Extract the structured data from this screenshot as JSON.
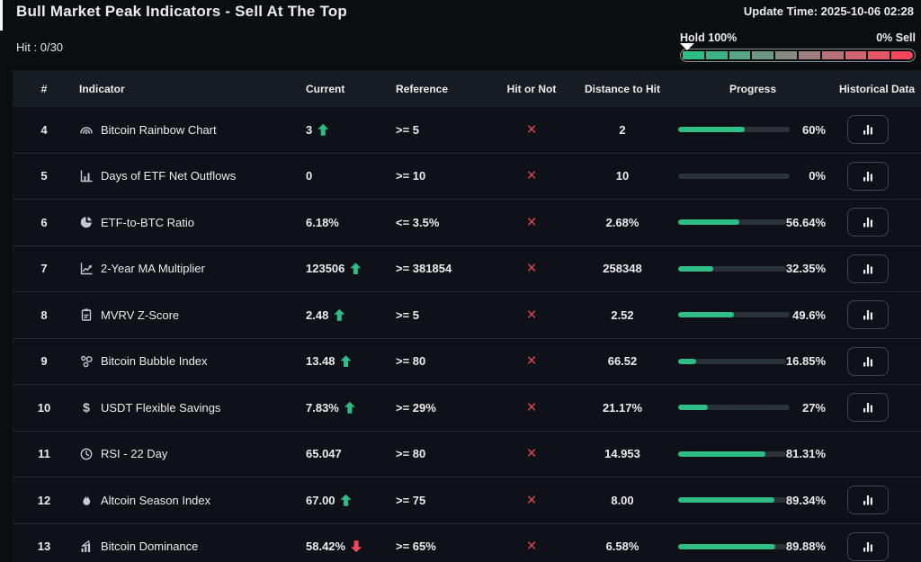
{
  "page": {
    "title": "Bull Market Peak Indicators - Sell At The Top",
    "update_time": "Update Time: 2025-10-06 02:28",
    "hit_counter": "Hit : 0/30"
  },
  "gauge": {
    "left_label": "Hold 100%",
    "right_label": "0% Sell",
    "marker_position_pct": 0,
    "segment_colors": [
      "#2ebd85",
      "#3fb186",
      "#57a486",
      "#6f9884",
      "#878b81",
      "#9f7e7d",
      "#b77178",
      "#cf6571",
      "#e25866",
      "#f6465d"
    ]
  },
  "table": {
    "headers": [
      "#",
      "Indicator",
      "Current",
      "Reference",
      "Hit or Not",
      "Distance to Hit",
      "Progress",
      "Historical Data"
    ],
    "hit_symbol": "×",
    "rows": [
      {
        "num": "4",
        "icon": "rainbow-icon",
        "indicator": "Bitcoin Rainbow Chart",
        "current": "3",
        "trend": "up",
        "reference": ">= 5",
        "hit": false,
        "distance": "2",
        "progress_pct": 60,
        "progress_label": "60%",
        "has_history_button": true
      },
      {
        "num": "5",
        "icon": "bar-chart-axis-icon",
        "indicator": "Days of ETF Net Outflows",
        "current": "0",
        "trend": "none",
        "reference": ">= 10",
        "hit": false,
        "distance": "10",
        "progress_pct": 0,
        "progress_label": "0%",
        "has_history_button": true
      },
      {
        "num": "6",
        "icon": "pie-chart-icon",
        "indicator": "ETF-to-BTC Ratio",
        "current": "6.18%",
        "trend": "none",
        "reference": "<= 3.5%",
        "hit": false,
        "distance": "2.68%",
        "progress_pct": 56.64,
        "progress_label": "56.64%",
        "has_history_button": true
      },
      {
        "num": "7",
        "icon": "line-chart-icon",
        "indicator": "2-Year MA Multiplier",
        "current": "123506",
        "trend": "up",
        "reference": ">= 381854",
        "hit": false,
        "distance": "258348",
        "progress_pct": 32.35,
        "progress_label": "32.35%",
        "has_history_button": true
      },
      {
        "num": "8",
        "icon": "clipboard-icon",
        "indicator": "MVRV Z-Score",
        "current": "2.48",
        "trend": "up",
        "reference": ">= 5",
        "hit": false,
        "distance": "2.52",
        "progress_pct": 49.6,
        "progress_label": "49.6%",
        "has_history_button": true
      },
      {
        "num": "9",
        "icon": "bubbles-icon",
        "indicator": "Bitcoin Bubble Index",
        "current": "13.48",
        "trend": "up",
        "reference": ">= 80",
        "hit": false,
        "distance": "66.52",
        "progress_pct": 16.85,
        "progress_label": "16.85%",
        "has_history_button": true
      },
      {
        "num": "10",
        "icon": "dollar-icon",
        "indicator": "USDT Flexible Savings",
        "current": "7.83%",
        "trend": "up",
        "reference": ">= 29%",
        "hit": false,
        "distance": "21.17%",
        "progress_pct": 27,
        "progress_label": "27%",
        "has_history_button": true
      },
      {
        "num": "11",
        "icon": "clock-icon",
        "indicator": "RSI - 22 Day",
        "current": "65.047",
        "trend": "none",
        "reference": ">= 80",
        "hit": false,
        "distance": "14.953",
        "progress_pct": 81.31,
        "progress_label": "81.31%",
        "has_history_button": false
      },
      {
        "num": "12",
        "icon": "flame-icon",
        "indicator": "Altcoin Season Index",
        "current": "67.00",
        "trend": "up",
        "reference": ">= 75",
        "hit": false,
        "distance": "8.00",
        "progress_pct": 89.34,
        "progress_label": "89.34%",
        "has_history_button": true
      },
      {
        "num": "13",
        "icon": "trending-bars-icon",
        "indicator": "Bitcoin Dominance",
        "current": "58.42%",
        "trend": "down",
        "reference": ">= 65%",
        "hit": false,
        "distance": "6.58%",
        "progress_pct": 89.88,
        "progress_label": "89.88%",
        "has_history_button": true
      }
    ]
  }
}
